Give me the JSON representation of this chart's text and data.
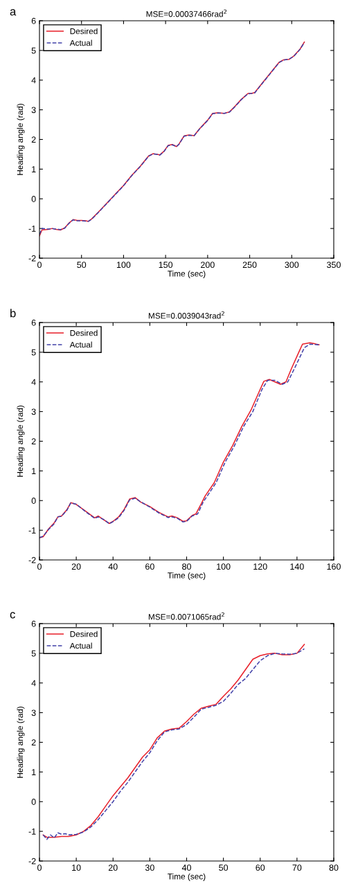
{
  "chart_data": [
    {
      "type": "line",
      "title": "MSE=0.00037466rad$^{2}$",
      "xlabel": "Time (sec)",
      "ylabel": "Heading angle (rad)",
      "annotations": [
        "a"
      ],
      "xlim": [
        0,
        350
      ],
      "ylim": [
        -2,
        6
      ],
      "xticks": [
        0,
        50,
        100,
        150,
        200,
        250,
        300,
        350
      ],
      "yticks": [
        -2,
        -1,
        0,
        1,
        2,
        3,
        4,
        5,
        6
      ],
      "grid": false,
      "legend": "top left",
      "series": [
        {
          "name": "Desired",
          "color": "#e8202a",
          "line_style": "solid",
          "x": [
            0,
            3,
            10,
            15,
            20,
            25,
            30,
            35,
            40,
            45,
            50,
            55,
            58,
            62,
            70,
            80,
            90,
            100,
            110,
            120,
            130,
            135,
            140,
            143,
            148,
            153,
            158,
            163,
            166,
            172,
            178,
            184,
            190,
            200,
            206,
            212,
            220,
            226,
            232,
            240,
            248,
            252,
            256,
            265,
            275,
            285,
            290,
            297,
            302,
            310,
            315
          ],
          "values": [
            -1.25,
            -1.05,
            -1.03,
            -1.0,
            -1.03,
            -1.05,
            -0.98,
            -0.82,
            -0.7,
            -0.73,
            -0.73,
            -0.74,
            -0.76,
            -0.68,
            -0.45,
            -0.15,
            0.15,
            0.45,
            0.8,
            1.1,
            1.45,
            1.52,
            1.5,
            1.48,
            1.6,
            1.8,
            1.83,
            1.76,
            1.85,
            2.12,
            2.15,
            2.13,
            2.35,
            2.65,
            2.88,
            2.9,
            2.88,
            2.93,
            3.1,
            3.35,
            3.55,
            3.55,
            3.58,
            3.9,
            4.25,
            4.6,
            4.68,
            4.7,
            4.8,
            5.05,
            5.28
          ]
        },
        {
          "name": "Actual",
          "color": "#4040a8",
          "line_style": "dashed",
          "x": [
            0,
            3,
            10,
            15,
            20,
            25,
            30,
            35,
            40,
            45,
            50,
            55,
            58,
            62,
            70,
            80,
            90,
            100,
            110,
            120,
            130,
            135,
            140,
            143,
            148,
            153,
            158,
            163,
            166,
            172,
            178,
            184,
            190,
            200,
            206,
            212,
            220,
            226,
            232,
            240,
            248,
            252,
            256,
            265,
            275,
            285,
            290,
            297,
            302,
            310,
            315
          ],
          "values": [
            -1.2,
            -1.0,
            -1.02,
            -1.0,
            -1.02,
            -1.04,
            -0.99,
            -0.83,
            -0.71,
            -0.74,
            -0.74,
            -0.75,
            -0.76,
            -0.69,
            -0.46,
            -0.16,
            0.14,
            0.44,
            0.79,
            1.09,
            1.44,
            1.51,
            1.5,
            1.47,
            1.59,
            1.79,
            1.82,
            1.76,
            1.84,
            2.11,
            2.14,
            2.13,
            2.34,
            2.64,
            2.87,
            2.89,
            2.88,
            2.92,
            3.09,
            3.34,
            3.54,
            3.55,
            3.57,
            3.89,
            4.24,
            4.59,
            4.67,
            4.71,
            4.79,
            5.04,
            5.27
          ]
        }
      ]
    },
    {
      "type": "line",
      "title": "MSE=0.0039043rad$^{2}$",
      "xlabel": "Time (sec)",
      "ylabel": "Heading angle (rad)",
      "annotations": [
        "b"
      ],
      "xlim": [
        0,
        160
      ],
      "ylim": [
        -2,
        6
      ],
      "xticks": [
        0,
        20,
        40,
        60,
        80,
        100,
        120,
        140,
        160
      ],
      "yticks": [
        -2,
        -1,
        0,
        1,
        2,
        3,
        4,
        5,
        6
      ],
      "grid": false,
      "legend": "top left",
      "series": [
        {
          "name": "Desired",
          "color": "#e8202a",
          "line_style": "solid",
          "x": [
            0,
            2,
            5,
            8,
            10,
            12,
            15,
            17,
            20,
            25,
            30,
            32,
            35,
            38,
            40,
            43,
            46,
            49,
            52,
            55,
            60,
            65,
            70,
            72,
            75,
            78,
            80,
            83,
            85,
            88,
            90,
            95,
            100,
            105,
            110,
            115,
            120,
            122,
            125,
            128,
            131,
            134,
            137,
            141,
            143,
            147,
            150,
            152
          ],
          "values": [
            -1.25,
            -1.22,
            -0.95,
            -0.75,
            -0.55,
            -0.52,
            -0.3,
            -0.07,
            -0.13,
            -0.35,
            -0.58,
            -0.52,
            -0.65,
            -0.77,
            -0.7,
            -0.55,
            -0.3,
            0.05,
            0.1,
            -0.05,
            -0.2,
            -0.4,
            -0.55,
            -0.52,
            -0.58,
            -0.7,
            -0.68,
            -0.5,
            -0.45,
            -0.1,
            0.15,
            0.6,
            1.3,
            1.85,
            2.5,
            3.05,
            3.75,
            4.02,
            4.08,
            4.0,
            3.92,
            4.0,
            4.45,
            5.0,
            5.27,
            5.32,
            5.28,
            5.25
          ]
        },
        {
          "name": "Actual",
          "color": "#4040a8",
          "line_style": "dashed",
          "x": [
            0,
            2,
            5,
            8,
            10,
            12,
            15,
            17,
            20,
            25,
            30,
            32,
            35,
            38,
            40,
            43,
            46,
            49,
            52,
            55,
            60,
            65,
            70,
            72,
            75,
            78,
            80,
            83,
            86,
            89,
            96,
            101,
            106,
            111,
            116,
            121,
            124,
            128,
            132,
            135,
            139,
            144,
            147,
            152
          ],
          "values": [
            -1.25,
            -1.2,
            -0.97,
            -0.78,
            -0.55,
            -0.53,
            -0.32,
            -0.08,
            -0.12,
            -0.37,
            -0.6,
            -0.55,
            -0.64,
            -0.78,
            -0.71,
            -0.58,
            -0.33,
            0.02,
            0.08,
            -0.04,
            -0.22,
            -0.42,
            -0.57,
            -0.55,
            -0.6,
            -0.72,
            -0.7,
            -0.52,
            -0.45,
            -0.05,
            0.6,
            1.3,
            1.85,
            2.5,
            3.0,
            3.75,
            4.05,
            4.05,
            3.92,
            4.0,
            4.5,
            5.15,
            5.27,
            5.25
          ]
        }
      ]
    },
    {
      "type": "line",
      "title": "MSE=0.0071065rad$^{2}$",
      "xlabel": "Time (sec)",
      "ylabel": "Heading angle (rad)",
      "annotations": [
        "c"
      ],
      "xlim": [
        0,
        80
      ],
      "ylim": [
        -2,
        6
      ],
      "xticks": [
        0,
        10,
        20,
        30,
        40,
        50,
        60,
        70,
        80
      ],
      "yticks": [
        -2,
        -1,
        0,
        1,
        2,
        3,
        4,
        5,
        6
      ],
      "grid": false,
      "legend": "top left",
      "series": [
        {
          "name": "Desired",
          "color": "#e8202a",
          "line_style": "solid",
          "x": [
            1,
            2,
            4,
            6,
            8,
            10,
            12,
            14,
            16,
            18,
            20,
            22,
            24,
            26,
            28,
            30,
            32,
            34,
            36,
            38,
            40,
            42,
            44,
            46,
            48,
            50,
            52,
            54,
            56,
            58,
            60,
            62,
            64,
            66,
            68,
            70,
            72
          ],
          "values": [
            -1.12,
            -1.2,
            -1.2,
            -1.17,
            -1.17,
            -1.12,
            -1.0,
            -0.8,
            -0.5,
            -0.15,
            0.2,
            0.5,
            0.8,
            1.15,
            1.5,
            1.75,
            2.15,
            2.38,
            2.45,
            2.48,
            2.7,
            2.95,
            3.15,
            3.22,
            3.28,
            3.55,
            3.8,
            4.1,
            4.45,
            4.8,
            4.92,
            4.98,
            5.0,
            4.95,
            4.95,
            5.0,
            5.3
          ]
        },
        {
          "name": "Actual",
          "color": "#4040a8",
          "line_style": "dashed",
          "x": [
            1,
            2,
            3,
            4,
            5,
            6,
            7,
            8,
            10,
            12,
            14,
            16,
            18,
            20,
            22,
            24,
            26,
            28,
            30,
            32,
            34,
            36,
            38,
            40,
            42,
            44,
            46,
            48,
            50,
            52,
            54,
            56,
            58,
            60,
            62,
            64,
            66,
            68,
            70,
            72
          ],
          "values": [
            -1.12,
            -1.27,
            -1.12,
            -1.22,
            -1.05,
            -1.1,
            -1.08,
            -1.12,
            -1.1,
            -1.02,
            -0.85,
            -0.6,
            -0.3,
            0.0,
            0.35,
            0.65,
            1.0,
            1.35,
            1.65,
            2.05,
            2.35,
            2.42,
            2.45,
            2.6,
            2.85,
            3.12,
            3.18,
            3.25,
            3.38,
            3.65,
            3.95,
            4.15,
            4.45,
            4.75,
            4.92,
            5.0,
            4.98,
            4.97,
            5.0,
            5.15
          ]
        }
      ]
    }
  ]
}
